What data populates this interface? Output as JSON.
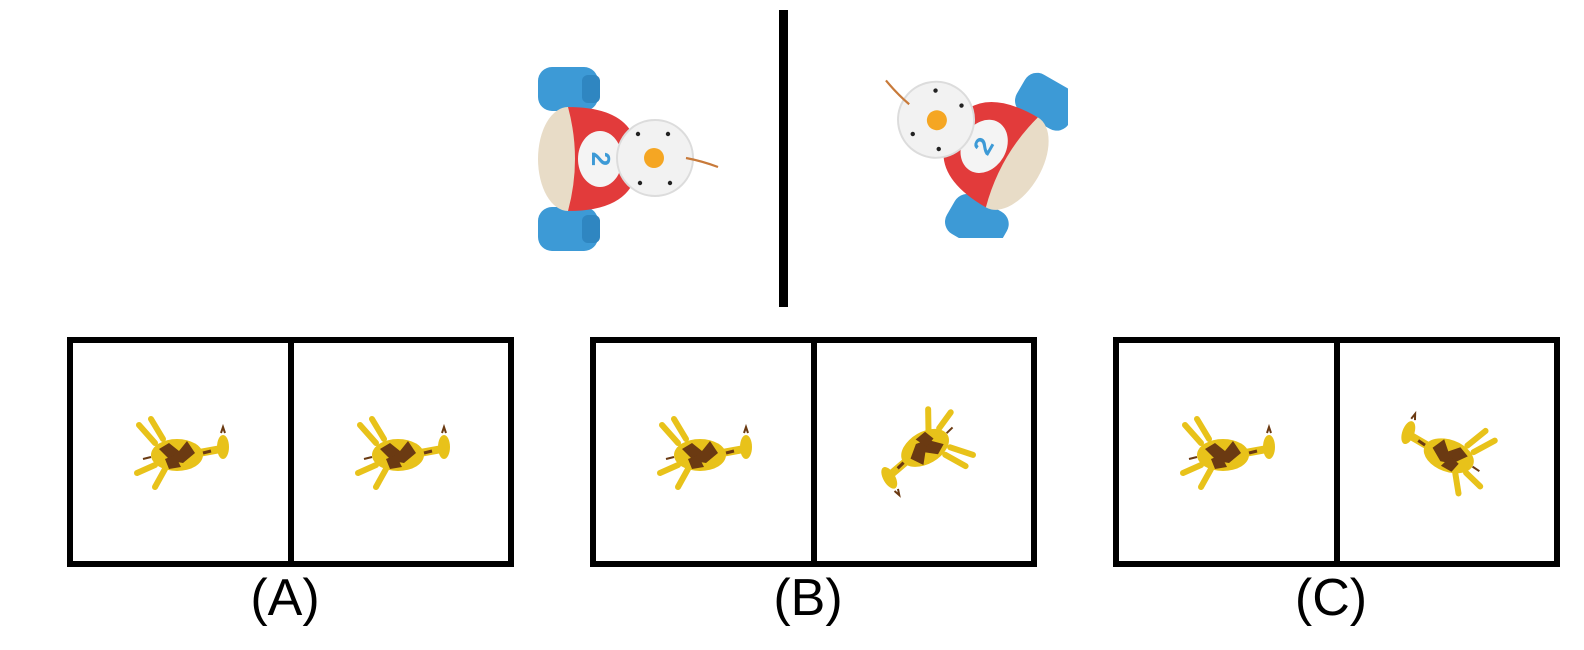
{
  "reference_pair": {
    "left_object": "toy-car-snowman",
    "right_object": "toy-car-snowman",
    "number_on_car": "2"
  },
  "options": [
    {
      "label": "(A)",
      "left_object": "giraffe",
      "right_object": "giraffe"
    },
    {
      "label": "(B)",
      "left_object": "giraffe",
      "right_object": "giraffe"
    },
    {
      "label": "(C)",
      "left_object": "giraffe",
      "right_object": "giraffe"
    }
  ],
  "colors": {
    "car_body": "#e23b3b",
    "wheels": "#3d9ad6",
    "snowman_head": "#f2f2f2",
    "nose": "#f5a623",
    "giraffe_yellow": "#e8c21a",
    "giraffe_brown": "#6b3a12",
    "frame": "#000000"
  }
}
